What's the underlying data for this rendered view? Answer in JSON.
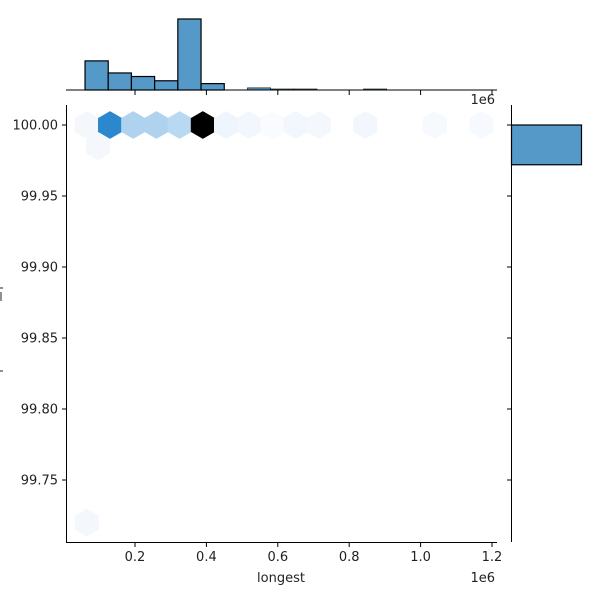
{
  "chart_data": {
    "type": "hexbin-jointplot",
    "title": "",
    "xlabel": "longest",
    "ylabel": "",
    "x_offset_label": "1e6",
    "top_offset_label": "1e6",
    "x_ticks": [
      0.2,
      0.4,
      0.6,
      0.8,
      1.0,
      1.2
    ],
    "x_tick_labels": [
      "0.2",
      "0.4",
      "0.6",
      "0.8",
      "1.0",
      "1.2"
    ],
    "y_ticks": [
      100.0,
      99.95,
      99.9,
      99.85,
      99.8,
      99.75
    ],
    "y_tick_labels": [
      "100.00",
      "99.95",
      "99.90",
      "99.85",
      "99.80",
      "99.75"
    ],
    "xlim": [
      0.015,
      1.225
    ],
    "ylim": [
      99.707,
      100.015
    ],
    "grid": false,
    "hexbins": [
      {
        "x": 0.065,
        "y": 100.0,
        "color": "#f4f8fd"
      },
      {
        "x": 0.13,
        "y": 100.0,
        "color": "#2b88cc"
      },
      {
        "x": 0.195,
        "y": 100.0,
        "color": "#afd2ef"
      },
      {
        "x": 0.26,
        "y": 100.0,
        "color": "#afd2ef"
      },
      {
        "x": 0.325,
        "y": 100.0,
        "color": "#b9d8f1"
      },
      {
        "x": 0.39,
        "y": 100.0,
        "color": "#000000"
      },
      {
        "x": 0.455,
        "y": 100.0,
        "color": "#eef5fc"
      },
      {
        "x": 0.52,
        "y": 100.0,
        "color": "#f1f7fd"
      },
      {
        "x": 0.585,
        "y": 100.0,
        "color": "#f9fbfe"
      },
      {
        "x": 0.65,
        "y": 100.0,
        "color": "#f1f7fd"
      },
      {
        "x": 0.715,
        "y": 100.0,
        "color": "#f4f8fd"
      },
      {
        "x": 0.845,
        "y": 100.0,
        "color": "#f1f7fd"
      },
      {
        "x": 1.04,
        "y": 100.0,
        "color": "#f6f9fe"
      },
      {
        "x": 1.17,
        "y": 100.0,
        "color": "#f6f9fe"
      },
      {
        "x": 0.097,
        "y": 99.985,
        "color": "#f4f8fd"
      },
      {
        "x": 0.065,
        "y": 99.72,
        "color": "#f4f8fd"
      }
    ],
    "top_histogram": {
      "bin_edges": [
        0.06,
        0.125,
        0.19,
        0.255,
        0.32,
        0.385,
        0.45,
        0.515,
        0.58,
        0.645,
        0.71,
        0.775,
        0.84,
        0.905,
        0.97,
        1.035,
        1.1,
        1.165
      ],
      "relative_heights": [
        0.41,
        0.24,
        0.19,
        0.13,
        1.0,
        0.09,
        0.0,
        0.03,
        0.01,
        0.01,
        0.0,
        0.0,
        0.01,
        0.0,
        0.0,
        0.0,
        0.0
      ],
      "color": "#5499c7"
    },
    "right_histogram": {
      "bins": [
        {
          "y_from": 99.972,
          "y_to": 100.0,
          "relative_width": 1.0
        }
      ],
      "color": "#5499c7"
    }
  }
}
